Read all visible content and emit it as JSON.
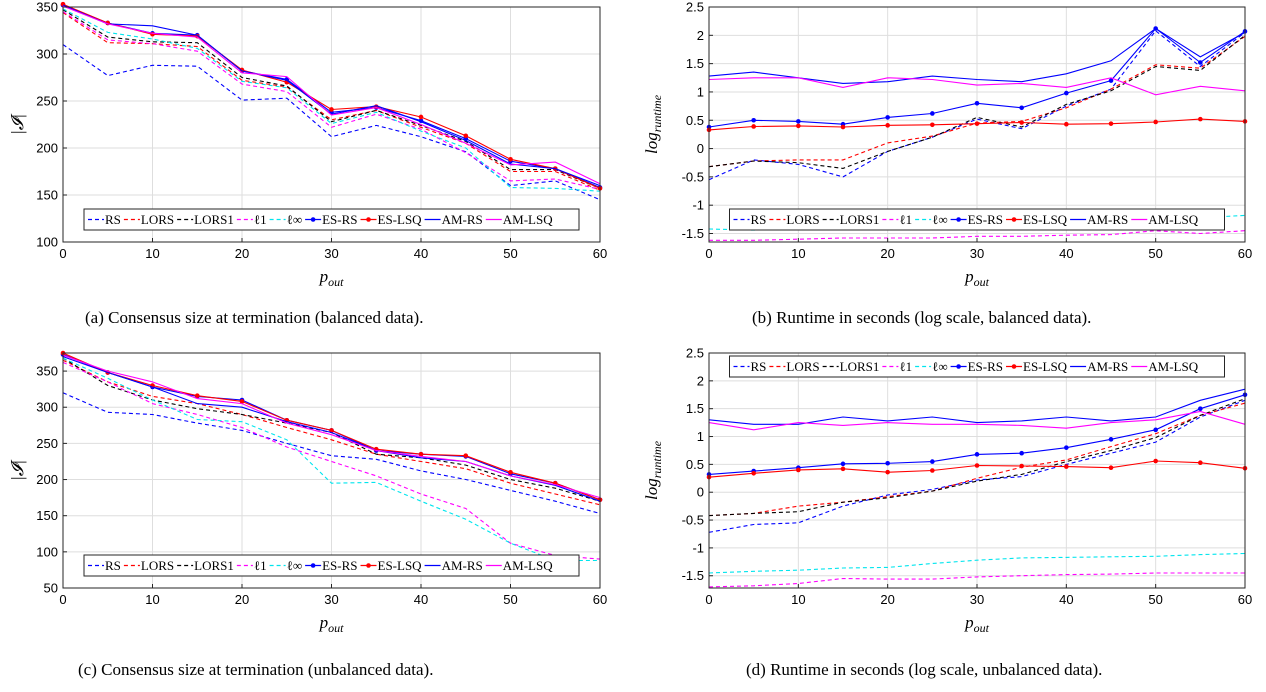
{
  "chart_data": [
    {
      "type": "line",
      "caption": "(a) Consensus size at termination (balanced data).",
      "xlabel": "p_out",
      "ylabel": "|𝓘|",
      "xlim": [
        0,
        60
      ],
      "ylim": [
        100,
        350
      ],
      "xticks": [
        0,
        10,
        20,
        30,
        40,
        50,
        60
      ],
      "yticks": [
        100,
        150,
        200,
        250,
        300,
        350
      ],
      "grid": true,
      "legend": "bottom",
      "x": [
        0,
        5,
        10,
        15,
        20,
        25,
        30,
        35,
        40,
        45,
        50,
        55,
        60
      ],
      "series": [
        {
          "name": "RS",
          "color": "#0000ff",
          "style": "dashed",
          "marker": false,
          "values": [
            310,
            277,
            288,
            287,
            251,
            253,
            212,
            224,
            212,
            196,
            160,
            165,
            145
          ]
        },
        {
          "name": "LORS",
          "color": "#ff0000",
          "style": "dashed",
          "marker": false,
          "values": [
            344,
            312,
            311,
            308,
            272,
            265,
            230,
            240,
            222,
            205,
            175,
            175,
            155
          ]
        },
        {
          "name": "LORS1",
          "color": "#000000",
          "style": "dashed",
          "marker": false,
          "values": [
            347,
            318,
            313,
            312,
            275,
            266,
            228,
            240,
            224,
            207,
            177,
            177,
            157
          ]
        },
        {
          "name": "ℓ1",
          "color": "#ff00ff",
          "style": "dashed",
          "marker": false,
          "values": [
            345,
            315,
            311,
            303,
            268,
            260,
            222,
            236,
            220,
            195,
            165,
            167,
            156
          ]
        },
        {
          "name": "ℓ∞",
          "color": "#00e5ee",
          "style": "dashed",
          "marker": false,
          "values": [
            348,
            323,
            316,
            306,
            271,
            264,
            226,
            238,
            218,
            200,
            158,
            157,
            154
          ]
        },
        {
          "name": "ES-RS",
          "color": "#0000ff",
          "style": "solid",
          "marker": true,
          "values": [
            352,
            333,
            322,
            320,
            282,
            273,
            238,
            243,
            229,
            210,
            186,
            178,
            158
          ]
        },
        {
          "name": "ES-LSQ",
          "color": "#ff0000",
          "style": "solid",
          "marker": true,
          "values": [
            353,
            333,
            321,
            319,
            283,
            270,
            241,
            244,
            233,
            213,
            188,
            178,
            157
          ]
        },
        {
          "name": "AM-RS",
          "color": "#0000ff",
          "style": "solid",
          "marker": false,
          "values": [
            352,
            332,
            330,
            320,
            282,
            272,
            236,
            245,
            228,
            208,
            183,
            178,
            160
          ]
        },
        {
          "name": "AM-LSQ",
          "color": "#ff00ff",
          "style": "solid",
          "marker": false,
          "values": [
            351,
            332,
            322,
            318,
            280,
            276,
            235,
            243,
            225,
            205,
            182,
            185,
            162
          ]
        }
      ]
    },
    {
      "type": "line",
      "caption": "(b) Runtime in seconds (log scale, balanced data).",
      "xlabel": "p_out",
      "ylabel": "log_runtime",
      "xlim": [
        0,
        60
      ],
      "ylim": [
        -1.65,
        2.5
      ],
      "xticks": [
        0,
        10,
        20,
        30,
        40,
        50,
        60
      ],
      "yticks": [
        -1.5,
        -1,
        -0.5,
        0,
        0.5,
        1,
        1.5,
        2,
        2.5
      ],
      "grid": true,
      "legend": "bottom",
      "x": [
        0,
        5,
        10,
        15,
        20,
        25,
        30,
        35,
        40,
        45,
        50,
        55,
        60
      ],
      "series": [
        {
          "name": "RS",
          "color": "#0000ff",
          "style": "dashed",
          "marker": false,
          "values": [
            -0.55,
            -0.2,
            -0.28,
            -0.5,
            -0.05,
            0.2,
            0.52,
            0.35,
            0.75,
            1.05,
            2.08,
            1.45,
            2.05
          ]
        },
        {
          "name": "LORS",
          "color": "#ff0000",
          "style": "dashed",
          "marker": false,
          "values": [
            -0.32,
            -0.22,
            -0.2,
            -0.2,
            0.1,
            0.22,
            0.45,
            0.48,
            0.72,
            1.05,
            1.48,
            1.42,
            1.98
          ]
        },
        {
          "name": "LORS1",
          "color": "#000000",
          "style": "dashed",
          "marker": false,
          "values": [
            -0.32,
            -0.22,
            -0.25,
            -0.35,
            -0.05,
            0.2,
            0.55,
            0.38,
            0.78,
            1.02,
            1.45,
            1.38,
            2.0
          ]
        },
        {
          "name": "ℓ1",
          "color": "#ff00ff",
          "style": "dashed",
          "marker": false,
          "values": [
            -1.62,
            -1.62,
            -1.6,
            -1.58,
            -1.58,
            -1.58,
            -1.55,
            -1.55,
            -1.53,
            -1.52,
            -1.45,
            -1.5,
            -1.45
          ]
        },
        {
          "name": "ℓ∞",
          "color": "#00e5ee",
          "style": "dashed",
          "marker": false,
          "values": [
            -1.42,
            -1.44,
            -1.4,
            -1.42,
            -1.38,
            -1.36,
            -1.28,
            -1.28,
            -1.28,
            -1.25,
            -1.18,
            -1.22,
            -1.18
          ]
        },
        {
          "name": "ES-RS",
          "color": "#0000ff",
          "style": "solid",
          "marker": true,
          "values": [
            0.38,
            0.5,
            0.48,
            0.43,
            0.55,
            0.62,
            0.8,
            0.72,
            0.98,
            1.2,
            2.12,
            1.52,
            2.07
          ]
        },
        {
          "name": "ES-LSQ",
          "color": "#ff0000",
          "style": "solid",
          "marker": true,
          "values": [
            0.33,
            0.39,
            0.4,
            0.38,
            0.41,
            0.42,
            0.44,
            0.46,
            0.43,
            0.44,
            0.47,
            0.52,
            0.48
          ]
        },
        {
          "name": "AM-RS",
          "color": "#0000ff",
          "style": "solid",
          "marker": false,
          "values": [
            1.28,
            1.35,
            1.25,
            1.15,
            1.18,
            1.28,
            1.22,
            1.18,
            1.32,
            1.55,
            2.12,
            1.62,
            2.05
          ]
        },
        {
          "name": "AM-LSQ",
          "color": "#ff00ff",
          "style": "solid",
          "marker": false,
          "values": [
            1.22,
            1.25,
            1.25,
            1.08,
            1.25,
            1.22,
            1.12,
            1.15,
            1.08,
            1.25,
            0.95,
            1.1,
            1.02
          ]
        }
      ]
    },
    {
      "type": "line",
      "caption": "(c) Consensus size at termination (unbalanced data).",
      "xlabel": "p_out",
      "ylabel": "|𝓘|",
      "xlim": [
        0,
        60
      ],
      "ylim": [
        50,
        375
      ],
      "xticks": [
        0,
        10,
        20,
        30,
        40,
        50,
        60
      ],
      "yticks": [
        50,
        100,
        150,
        200,
        250,
        300,
        350
      ],
      "grid": true,
      "legend": "bottom",
      "x": [
        0,
        5,
        10,
        15,
        20,
        25,
        30,
        35,
        40,
        45,
        50,
        55,
        60
      ],
      "series": [
        {
          "name": "RS",
          "color": "#0000ff",
          "style": "dashed",
          "marker": false,
          "values": [
            320,
            293,
            290,
            278,
            268,
            250,
            233,
            228,
            212,
            200,
            185,
            170,
            153
          ]
        },
        {
          "name": "LORS",
          "color": "#ff0000",
          "style": "dashed",
          "marker": false,
          "values": [
            365,
            335,
            315,
            305,
            290,
            272,
            255,
            235,
            225,
            215,
            195,
            180,
            165
          ]
        },
        {
          "name": "LORS1",
          "color": "#000000",
          "style": "dashed",
          "marker": false,
          "values": [
            368,
            330,
            310,
            298,
            290,
            278,
            265,
            235,
            230,
            220,
            200,
            188,
            170
          ]
        },
        {
          "name": "ℓ1",
          "color": "#ff00ff",
          "style": "dashed",
          "marker": false,
          "values": [
            362,
            335,
            305,
            290,
            272,
            245,
            225,
            205,
            180,
            160,
            112,
            95,
            90
          ]
        },
        {
          "name": "ℓ∞",
          "color": "#00e5ee",
          "style": "dashed",
          "marker": false,
          "values": [
            368,
            340,
            310,
            283,
            280,
            255,
            195,
            196,
            170,
            145,
            112,
            88,
            88
          ]
        },
        {
          "name": "ES-RS",
          "color": "#0000ff",
          "style": "solid",
          "marker": true,
          "values": [
            373,
            348,
            328,
            315,
            310,
            282,
            268,
            240,
            235,
            232,
            208,
            195,
            172
          ]
        },
        {
          "name": "ES-LSQ",
          "color": "#ff0000",
          "style": "solid",
          "marker": true,
          "values": [
            375,
            348,
            330,
            316,
            308,
            282,
            268,
            242,
            235,
            233,
            210,
            195,
            172
          ]
        },
        {
          "name": "AM-RS",
          "color": "#0000ff",
          "style": "solid",
          "marker": false,
          "values": [
            370,
            348,
            328,
            305,
            300,
            280,
            265,
            240,
            230,
            225,
            205,
            192,
            170
          ]
        },
        {
          "name": "AM-LSQ",
          "color": "#ff00ff",
          "style": "solid",
          "marker": false,
          "values": [
            372,
            350,
            335,
            312,
            305,
            278,
            262,
            240,
            232,
            225,
            205,
            193,
            175
          ]
        }
      ]
    },
    {
      "type": "line",
      "caption": "(d) Runtime in seconds (log scale, unbalanced data).",
      "xlabel": "p_out",
      "ylabel": "log_runtime",
      "xlim": [
        0,
        60
      ],
      "ylim": [
        -1.72,
        2.5
      ],
      "xticks": [
        0,
        10,
        20,
        30,
        40,
        50,
        60
      ],
      "yticks": [
        -1.5,
        -1,
        -0.5,
        0,
        0.5,
        1,
        1.5,
        2,
        2.5
      ],
      "grid": true,
      "legend": "top",
      "x": [
        0,
        5,
        10,
        15,
        20,
        25,
        30,
        35,
        40,
        45,
        50,
        55,
        60
      ],
      "series": [
        {
          "name": "RS",
          "color": "#0000ff",
          "style": "dashed",
          "marker": false,
          "values": [
            -0.72,
            -0.58,
            -0.55,
            -0.25,
            -0.05,
            0.05,
            0.22,
            0.28,
            0.5,
            0.7,
            0.9,
            1.35,
            1.65
          ]
        },
        {
          "name": "LORS",
          "color": "#ff0000",
          "style": "dashed",
          "marker": false,
          "values": [
            -0.42,
            -0.38,
            -0.25,
            -0.18,
            -0.08,
            0.02,
            0.25,
            0.45,
            0.58,
            0.82,
            1.05,
            1.38,
            1.6
          ]
        },
        {
          "name": "LORS1",
          "color": "#000000",
          "style": "dashed",
          "marker": false,
          "values": [
            -0.42,
            -0.38,
            -0.35,
            -0.18,
            -0.1,
            0.02,
            0.2,
            0.32,
            0.55,
            0.75,
            0.98,
            1.38,
            1.68
          ]
        },
        {
          "name": "ℓ1",
          "color": "#ff00ff",
          "style": "dashed",
          "marker": false,
          "values": [
            -1.7,
            -1.68,
            -1.64,
            -1.55,
            -1.56,
            -1.56,
            -1.52,
            -1.5,
            -1.48,
            -1.47,
            -1.45,
            -1.45,
            -1.45
          ]
        },
        {
          "name": "ℓ∞",
          "color": "#00e5ee",
          "style": "dashed",
          "marker": false,
          "values": [
            -1.45,
            -1.42,
            -1.4,
            -1.36,
            -1.35,
            -1.28,
            -1.22,
            -1.18,
            -1.17,
            -1.16,
            -1.15,
            -1.12,
            -1.1
          ]
        },
        {
          "name": "ES-RS",
          "color": "#0000ff",
          "style": "solid",
          "marker": true,
          "values": [
            0.32,
            0.38,
            0.44,
            0.51,
            0.52,
            0.55,
            0.68,
            0.7,
            0.8,
            0.95,
            1.12,
            1.5,
            1.75
          ]
        },
        {
          "name": "ES-LSQ",
          "color": "#ff0000",
          "style": "solid",
          "marker": true,
          "values": [
            0.27,
            0.34,
            0.4,
            0.42,
            0.36,
            0.39,
            0.48,
            0.47,
            0.46,
            0.44,
            0.56,
            0.53,
            0.43
          ]
        },
        {
          "name": "AM-RS",
          "color": "#0000ff",
          "style": "solid",
          "marker": false,
          "values": [
            1.3,
            1.22,
            1.22,
            1.35,
            1.28,
            1.35,
            1.25,
            1.28,
            1.35,
            1.28,
            1.35,
            1.65,
            1.85
          ]
        },
        {
          "name": "AM-LSQ",
          "color": "#ff00ff",
          "style": "solid",
          "marker": false,
          "values": [
            1.25,
            1.12,
            1.25,
            1.2,
            1.25,
            1.22,
            1.22,
            1.2,
            1.15,
            1.25,
            1.3,
            1.45,
            1.22
          ]
        }
      ]
    }
  ]
}
